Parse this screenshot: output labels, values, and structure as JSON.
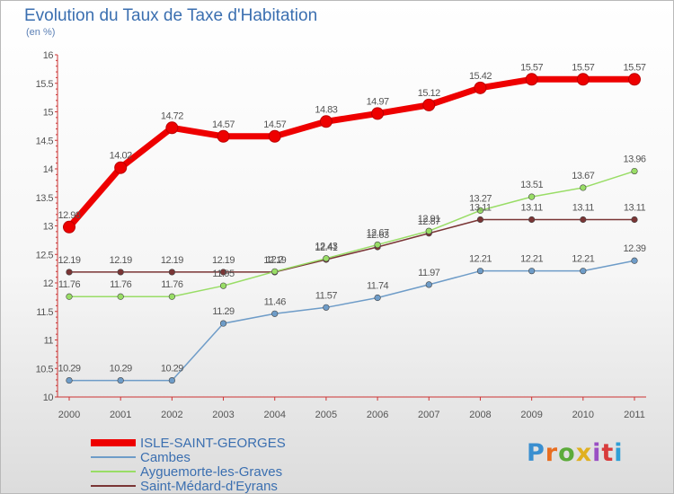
{
  "header": {
    "title": "Evolution du Taux de Taxe d'Habitation",
    "unit": "(en %)"
  },
  "brand": {
    "logo_text": "Proxiti"
  },
  "chart_data": {
    "type": "line",
    "title": "Evolution du Taux de Taxe d'Habitation",
    "ylabel": "(en %)",
    "xlabel": "",
    "x": [
      "2000",
      "2001",
      "2002",
      "2003",
      "2004",
      "2005",
      "2006",
      "2007",
      "2008",
      "2009",
      "2010",
      "2011"
    ],
    "ylim": [
      10,
      16
    ],
    "yticks": [
      "10",
      "10.5",
      "11",
      "11.5",
      "12",
      "12.5",
      "13",
      "13.5",
      "14",
      "14.5",
      "15",
      "15.5",
      "16"
    ],
    "grid": false,
    "legend_position": "bottom-left",
    "series": [
      {
        "name": "ISLE-SAINT-GEORGES",
        "color": "#ee0000",
        "bold": true,
        "values": [
          12.98,
          14.02,
          14.72,
          14.57,
          14.57,
          14.83,
          14.97,
          15.12,
          15.42,
          15.57,
          15.57,
          15.57
        ],
        "labels": [
          "12.98",
          "14.02",
          "14.72",
          "14.57",
          "14.57",
          "14.83",
          "14.97",
          "15.12",
          "15.42",
          "15.57",
          "15.57",
          "15.57"
        ]
      },
      {
        "name": "Cambes",
        "color": "#6e9cc8",
        "values": [
          10.29,
          10.29,
          10.29,
          11.29,
          11.46,
          11.57,
          11.74,
          11.97,
          12.21,
          12.21,
          12.21,
          12.39
        ],
        "labels": [
          "10.29",
          "10.29",
          "10.29",
          "11.29",
          "11.46",
          "11.57",
          "11.74",
          "11.97",
          "12.21",
          "12.21",
          "12.21",
          "12.39"
        ]
      },
      {
        "name": "Ayguemorte-les-Graves",
        "color": "#99dd66",
        "values": [
          11.76,
          11.76,
          11.76,
          11.95,
          12.2,
          12.43,
          12.67,
          12.91,
          13.27,
          13.51,
          13.67,
          13.96
        ],
        "labels": [
          "11.76",
          "11.76",
          "11.76",
          "11.95",
          "12.2",
          "12.43",
          "12.67",
          "12.91",
          "13.27",
          "13.51",
          "13.67",
          "13.96"
        ]
      },
      {
        "name": "Saint-Médard-d'Eyrans",
        "color": "#7a3535",
        "values": [
          12.19,
          12.19,
          12.19,
          12.19,
          12.19,
          12.41,
          12.63,
          12.87,
          13.11,
          13.11,
          13.11,
          13.11
        ],
        "labels": [
          "12.19",
          "12.19",
          "12.19",
          "12.19",
          "12.19",
          "12.41",
          "12.63",
          "12.87",
          "13.11",
          "13.11",
          "13.11",
          "13.11"
        ]
      }
    ]
  }
}
